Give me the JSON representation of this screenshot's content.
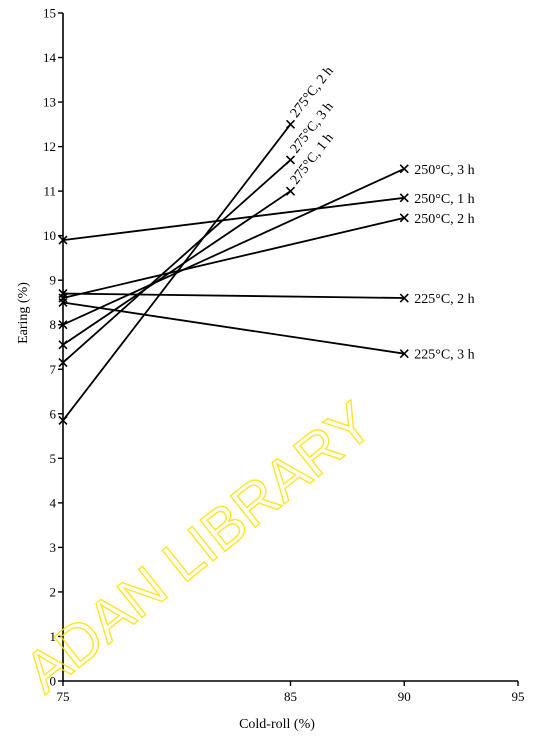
{
  "chart_data": {
    "type": "line",
    "title": "",
    "xlabel": "Cold-roll (%)",
    "ylabel": "Earing (%)",
    "xlim": [
      75,
      95
    ],
    "ylim": [
      0,
      15
    ],
    "x_ticks": [
      75,
      85,
      90,
      95
    ],
    "y_ticks": [
      0,
      1,
      2,
      3,
      4,
      5,
      6,
      7,
      8,
      9,
      10,
      11,
      12,
      13,
      14,
      15
    ],
    "grid": false,
    "series": [
      {
        "name": "275°C, 2 h",
        "x": [
          75,
          85
        ],
        "y": [
          5.85,
          12.5
        ]
      },
      {
        "name": "275°C, 3 h",
        "x": [
          75,
          85
        ],
        "y": [
          7.15,
          11.7
        ]
      },
      {
        "name": "275°C, 1 h",
        "x": [
          75,
          85
        ],
        "y": [
          7.55,
          11.0
        ]
      },
      {
        "name": "250°C, 3 h",
        "x": [
          75,
          90
        ],
        "y": [
          8.0,
          11.5
        ]
      },
      {
        "name": "250°C, 1 h",
        "x": [
          75,
          90
        ],
        "y": [
          9.9,
          10.85
        ]
      },
      {
        "name": "250°C, 2 h",
        "x": [
          75,
          90
        ],
        "y": [
          8.6,
          10.4
        ]
      },
      {
        "name": "225°C, 2 h",
        "x": [
          75,
          90
        ],
        "y": [
          8.7,
          8.6
        ]
      },
      {
        "name": "225°C, 3 h",
        "x": [
          75,
          90
        ],
        "y": [
          8.5,
          7.35
        ]
      }
    ]
  },
  "watermark": {
    "text": "ADAN LIBRARY",
    "color": "#FFE100"
  }
}
